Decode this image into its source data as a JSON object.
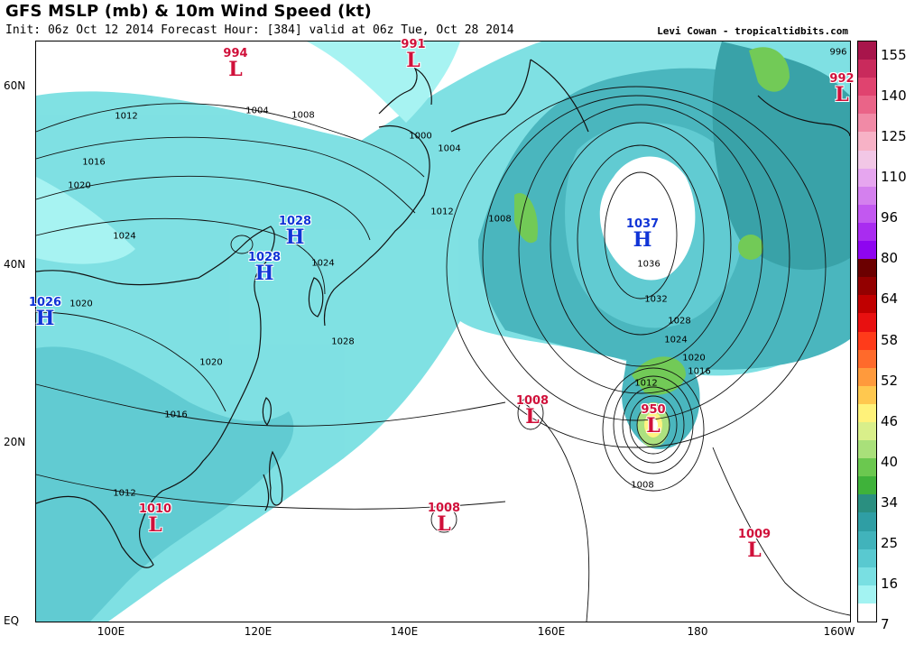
{
  "header": {
    "title": "GFS MSLP (mb) & 10m Wind Speed (kt)",
    "subtitle": "Init: 06z Oct 12 2014 Forecast Hour: [384] valid at 06z Tue, Oct 28 2014",
    "credit": "Levi Cowan - tropicaltidbits.com"
  },
  "axes": {
    "lat_labels": [
      "60N",
      "40N",
      "20N",
      "EQ"
    ],
    "lon_labels": [
      "100E",
      "120E",
      "140E",
      "160E",
      "180",
      "160W"
    ]
  },
  "colorbar": {
    "labels": [
      "155",
      "140",
      "125",
      "110",
      "96",
      "80",
      "64",
      "58",
      "52",
      "46",
      "40",
      "34",
      "25",
      "16",
      "7"
    ],
    "colors": [
      "#a8154b",
      "#c92a5c",
      "#e0436f",
      "#ea6488",
      "#f18aa6",
      "#f7b2c6",
      "#f2c7e6",
      "#e6a6ef",
      "#d480ee",
      "#c258f0",
      "#a92cf0",
      "#8e05f0",
      "#6b0000",
      "#930000",
      "#c00000",
      "#e81010",
      "#ff3b1a",
      "#ff6a2b",
      "#ff9a3c",
      "#ffc84f",
      "#fff27a",
      "#d9ef8a",
      "#a9e07a",
      "#6bc84f",
      "#3fb23a",
      "#2a8f80",
      "#2f9ea4",
      "#41b3bb",
      "#59c9d0",
      "#79dfe2",
      "#a3f3f2",
      "#ffffff"
    ]
  },
  "systems": [
    {
      "type": "L",
      "pressure": "994"
    },
    {
      "type": "L",
      "pressure": "991"
    },
    {
      "type": "L",
      "pressure": "992"
    },
    {
      "type": "H",
      "pressure": "1028"
    },
    {
      "type": "H",
      "pressure": "1028"
    },
    {
      "type": "H",
      "pressure": "1026"
    },
    {
      "type": "H",
      "pressure": "1037"
    },
    {
      "type": "L",
      "pressure": "1008"
    },
    {
      "type": "L",
      "pressure": "950"
    },
    {
      "type": "L",
      "pressure": "1010"
    },
    {
      "type": "L",
      "pressure": "1008"
    },
    {
      "type": "L",
      "pressure": "1009"
    }
  ],
  "isobar_labels": [
    "1012",
    "1004",
    "1008",
    "1000",
    "1004",
    "1016",
    "1020",
    "1024",
    "1012",
    "1008",
    "1024",
    "1028",
    "1020",
    "1020",
    "1016",
    "1012",
    "1036",
    "1032",
    "1028",
    "1024",
    "1020",
    "1016",
    "1012",
    "1008",
    "996"
  ]
}
